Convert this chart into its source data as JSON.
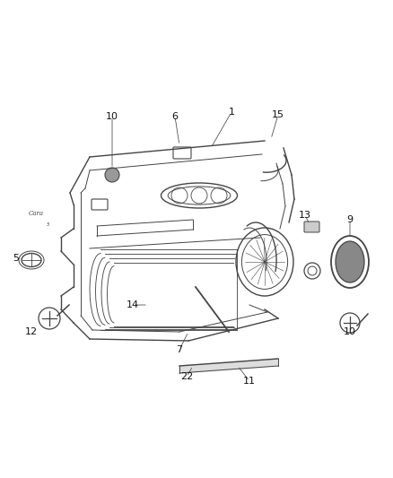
{
  "bg_color": "#ffffff",
  "line_color": "#444444",
  "label_color": "#111111",
  "figsize": [
    4.38,
    5.33
  ],
  "dpi": 100
}
